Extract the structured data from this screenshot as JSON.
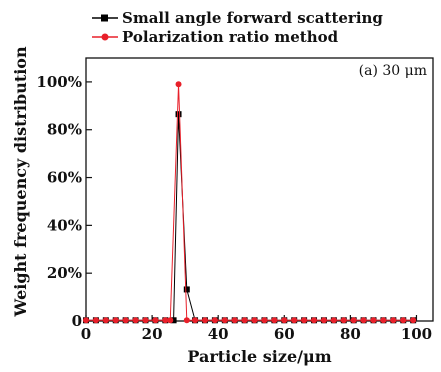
{
  "chart_data": {
    "type": "line",
    "xlabel": "Particle size/μm",
    "ylabel": "Weight frequency distribution",
    "annotation": "(a) 30 μm",
    "xlim": [
      0,
      105
    ],
    "ylim": [
      0,
      110
    ],
    "xticks": [
      0,
      20,
      40,
      60,
      80,
      100
    ],
    "xtick_labels": [
      "0",
      "20",
      "40",
      "60",
      "80",
      "100"
    ],
    "yticks": [
      0,
      20,
      40,
      60,
      80,
      100
    ],
    "ytick_labels": [
      "0",
      "20%",
      "40%",
      "60%",
      "80%",
      "100%"
    ],
    "legend_position": "top-left",
    "grid": false,
    "series": [
      {
        "name": "Small angle forward scattering",
        "color": "#000000",
        "marker": "square",
        "points": [
          [
            0,
            0.3
          ],
          [
            3,
            0.3
          ],
          [
            6,
            0.3
          ],
          [
            9,
            0.3
          ],
          [
            12,
            0.3
          ],
          [
            15,
            0.3
          ],
          [
            18,
            0.3
          ],
          [
            21,
            0.3
          ],
          [
            24,
            0.3
          ],
          [
            26.5,
            0.3
          ],
          [
            28,
            86.5
          ],
          [
            30.5,
            13.2
          ],
          [
            33,
            0.3
          ],
          [
            36,
            0.3
          ],
          [
            39,
            0.3
          ],
          [
            42,
            0.3
          ],
          [
            45,
            0.3
          ],
          [
            48,
            0.3
          ],
          [
            51,
            0.3
          ],
          [
            54,
            0.3
          ],
          [
            57,
            0.3
          ],
          [
            60,
            0.3
          ],
          [
            63,
            0.3
          ],
          [
            66,
            0.3
          ],
          [
            69,
            0.3
          ],
          [
            72,
            0.3
          ],
          [
            75,
            0.3
          ],
          [
            78,
            0.3
          ],
          [
            81,
            0.3
          ],
          [
            84,
            0.3
          ],
          [
            87,
            0.3
          ],
          [
            90,
            0.3
          ],
          [
            93,
            0.3
          ],
          [
            96,
            0.3
          ],
          [
            99,
            0.3
          ]
        ]
      },
      {
        "name": "Polarization ratio method",
        "color": "#e8202a",
        "marker": "circle",
        "points": [
          [
            0,
            0.3
          ],
          [
            3,
            0.3
          ],
          [
            6,
            0.3
          ],
          [
            9,
            0.3
          ],
          [
            12,
            0.3
          ],
          [
            15,
            0.3
          ],
          [
            18,
            0.3
          ],
          [
            21,
            0.3
          ],
          [
            24,
            0.3
          ],
          [
            25.5,
            0.3
          ],
          [
            28,
            99
          ],
          [
            30.5,
            0.3
          ],
          [
            33,
            0.3
          ],
          [
            36,
            0.3
          ],
          [
            39,
            0.3
          ],
          [
            42,
            0.3
          ],
          [
            45,
            0.3
          ],
          [
            48,
            0.3
          ],
          [
            51,
            0.3
          ],
          [
            54,
            0.3
          ],
          [
            57,
            0.3
          ],
          [
            60,
            0.3
          ],
          [
            63,
            0.3
          ],
          [
            66,
            0.3
          ],
          [
            69,
            0.3
          ],
          [
            72,
            0.3
          ],
          [
            75,
            0.3
          ],
          [
            78,
            0.3
          ],
          [
            81,
            0.3
          ],
          [
            84,
            0.3
          ],
          [
            87,
            0.3
          ],
          [
            90,
            0.3
          ],
          [
            93,
            0.3
          ],
          [
            96,
            0.3
          ],
          [
            99,
            0.3
          ]
        ]
      }
    ]
  }
}
